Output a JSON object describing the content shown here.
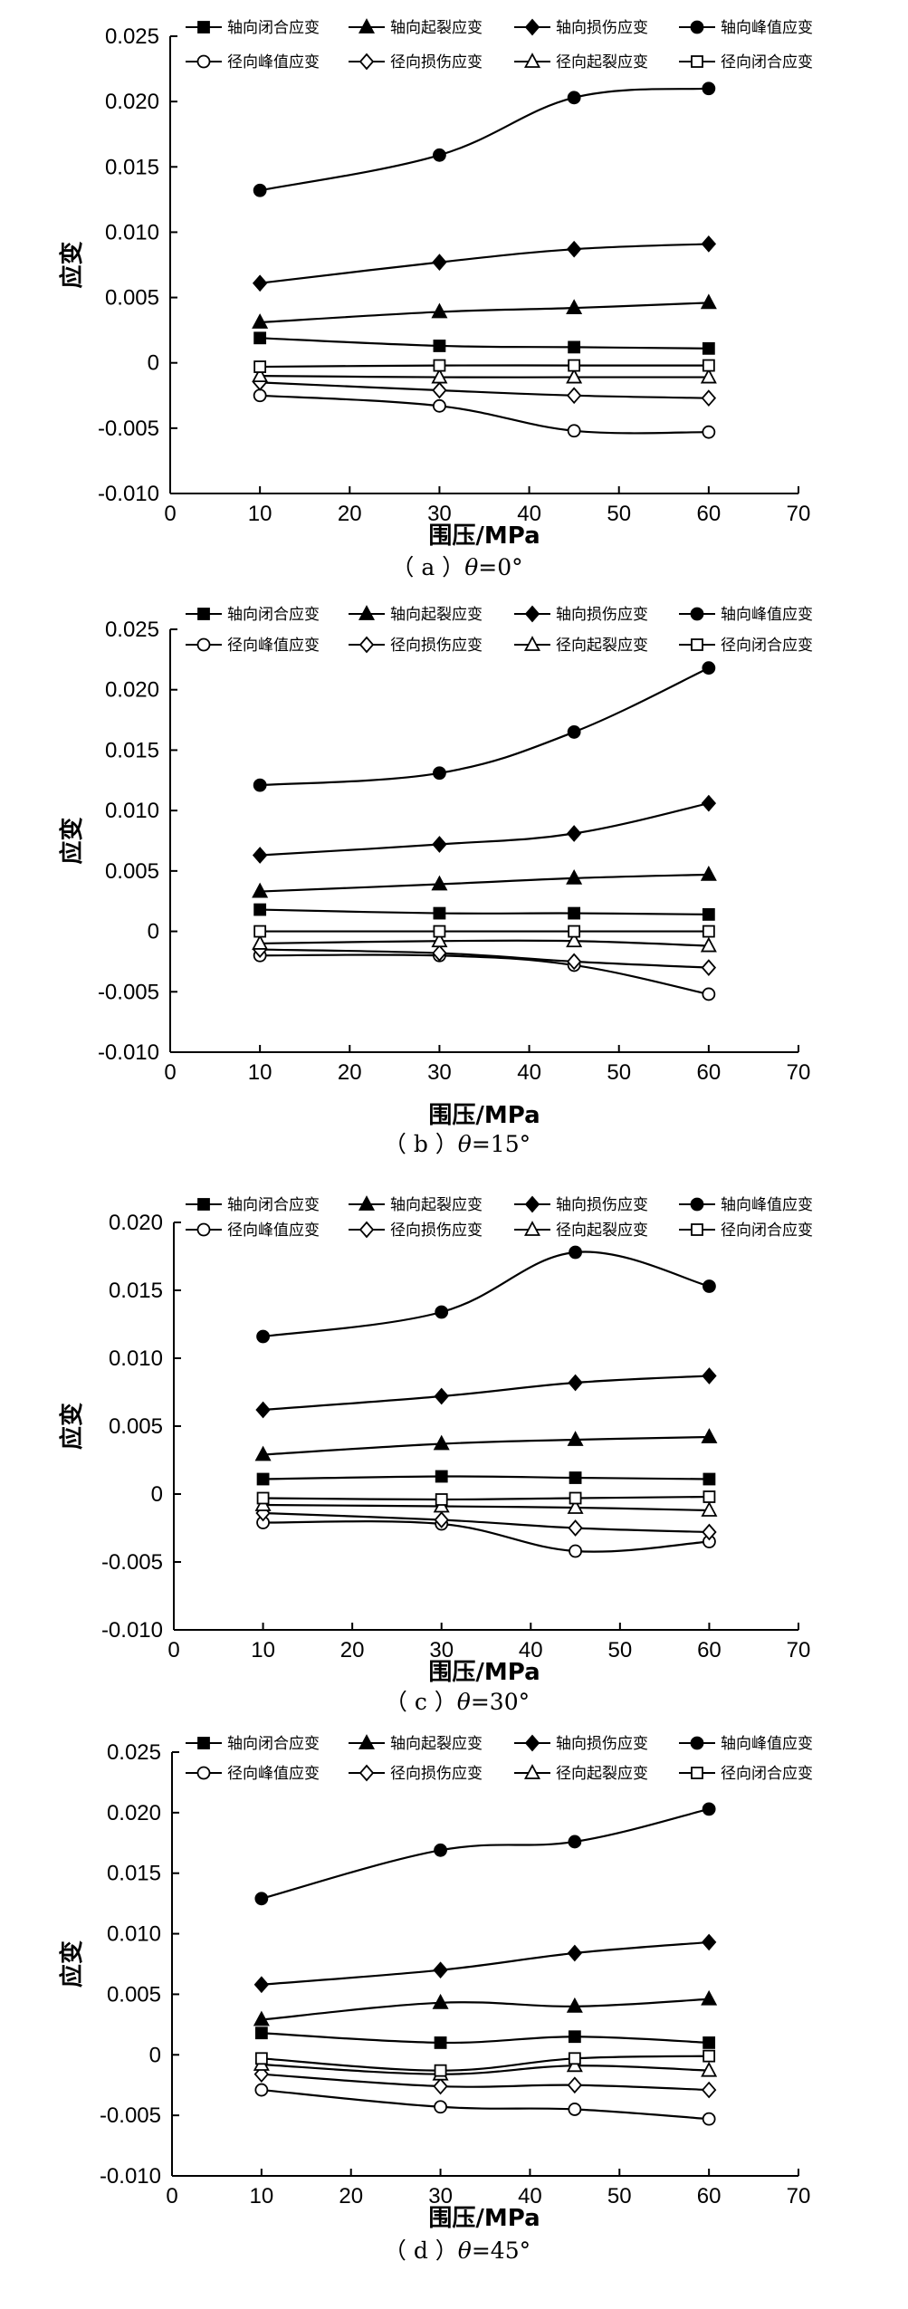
{
  "chart_data": [
    {
      "type": "line",
      "caption": {
        "label": "（ a ）",
        "symbol": "θ",
        "value": "=0°"
      },
      "xlabel": "围压/MPa",
      "ylabel": "应变",
      "xlim": [
        0,
        70
      ],
      "ylim": [
        -0.01,
        0.025
      ],
      "xticks": [
        "0",
        "10",
        "20",
        "30",
        "40",
        "50",
        "60",
        "70"
      ],
      "yticks": [
        "-0.010",
        "-0.005",
        "0",
        "0.005",
        "0.010",
        "0.015",
        "0.020",
        "0.025"
      ],
      "x": [
        10,
        30,
        45,
        60
      ],
      "series": [
        {
          "name": "轴向闭合应变",
          "marker": "square-filled",
          "values": [
            0.0019,
            0.0013,
            0.0012,
            0.0011
          ]
        },
        {
          "name": "轴向起裂应变",
          "marker": "triangle-filled",
          "values": [
            0.0031,
            0.0039,
            0.0042,
            0.0046
          ]
        },
        {
          "name": "轴向损伤应变",
          "marker": "diamond-filled",
          "values": [
            0.0061,
            0.0077,
            0.0087,
            0.0091
          ]
        },
        {
          "name": "轴向峰值应变",
          "marker": "circle-filled",
          "values": [
            0.0132,
            0.0159,
            0.0203,
            0.021
          ]
        },
        {
          "name": "径向峰值应变",
          "marker": "circle-open",
          "values": [
            -0.0025,
            -0.0033,
            -0.0052,
            -0.0053
          ]
        },
        {
          "name": "径向损伤应变",
          "marker": "diamond-open",
          "values": [
            -0.0015,
            -0.0021,
            -0.0025,
            -0.0027
          ]
        },
        {
          "name": "径向起裂应变",
          "marker": "triangle-open",
          "values": [
            -0.001,
            -0.0011,
            -0.0011,
            -0.0011
          ]
        },
        {
          "name": "径向闭合应变",
          "marker": "square-open",
          "values": [
            -0.0003,
            -0.0002,
            -0.0002,
            -0.0002
          ]
        }
      ]
    },
    {
      "type": "line",
      "caption": {
        "label": "（ b ）",
        "symbol": "θ",
        "value": "=15°"
      },
      "xlabel": "围压/MPa",
      "ylabel": "应变",
      "xlim": [
        0,
        70
      ],
      "ylim": [
        -0.01,
        0.025
      ],
      "xticks": [
        "0",
        "10",
        "20",
        "30",
        "40",
        "50",
        "60",
        "70"
      ],
      "yticks": [
        "-0.010",
        "-0.005",
        "0",
        "0.005",
        "0.010",
        "0.015",
        "0.020",
        "0.025"
      ],
      "x": [
        10,
        30,
        45,
        60
      ],
      "series": [
        {
          "name": "轴向闭合应变",
          "marker": "square-filled",
          "values": [
            0.0018,
            0.0015,
            0.0015,
            0.0014
          ]
        },
        {
          "name": "轴向起裂应变",
          "marker": "triangle-filled",
          "values": [
            0.0033,
            0.0039,
            0.0044,
            0.0047
          ]
        },
        {
          "name": "轴向损伤应变",
          "marker": "diamond-filled",
          "values": [
            0.0063,
            0.0072,
            0.0081,
            0.0106
          ]
        },
        {
          "name": "轴向峰值应变",
          "marker": "circle-filled",
          "values": [
            0.0121,
            0.0131,
            0.0165,
            0.0218
          ]
        },
        {
          "name": "径向峰值应变",
          "marker": "circle-open",
          "values": [
            -0.002,
            -0.002,
            -0.0028,
            -0.0052
          ]
        },
        {
          "name": "径向损伤应变",
          "marker": "diamond-open",
          "values": [
            -0.0015,
            -0.0018,
            -0.0025,
            -0.003
          ]
        },
        {
          "name": "径向起裂应变",
          "marker": "triangle-open",
          "values": [
            -0.001,
            -0.0008,
            -0.0008,
            -0.0012
          ]
        },
        {
          "name": "径向闭合应变",
          "marker": "square-open",
          "values": [
            0.0,
            0.0,
            0.0,
            0.0
          ]
        }
      ]
    },
    {
      "type": "line",
      "caption": {
        "label": "（ c ）",
        "symbol": "θ",
        "value": "=30°"
      },
      "xlabel": "围压/MPa",
      "ylabel": "应变",
      "xlim": [
        0,
        70
      ],
      "ylim": [
        -0.01,
        0.02
      ],
      "xticks": [
        "0",
        "10",
        "20",
        "30",
        "40",
        "50",
        "60",
        "70"
      ],
      "yticks": [
        "-0.010",
        "-0.005",
        "0",
        "0.005",
        "0.010",
        "0.015",
        "0.020"
      ],
      "x": [
        10,
        30,
        45,
        60
      ],
      "series": [
        {
          "name": "轴向闭合应变",
          "marker": "square-filled",
          "values": [
            0.0011,
            0.0013,
            0.0012,
            0.0011
          ]
        },
        {
          "name": "轴向起裂应变",
          "marker": "triangle-filled",
          "values": [
            0.0029,
            0.0037,
            0.004,
            0.0042
          ]
        },
        {
          "name": "轴向损伤应变",
          "marker": "diamond-filled",
          "values": [
            0.0062,
            0.0072,
            0.0082,
            0.0087
          ]
        },
        {
          "name": "轴向峰值应变",
          "marker": "circle-filled",
          "values": [
            0.0116,
            0.0134,
            0.0178,
            0.0153
          ]
        },
        {
          "name": "径向峰值应变",
          "marker": "circle-open",
          "values": [
            -0.0021,
            -0.0022,
            -0.0042,
            -0.0035
          ]
        },
        {
          "name": "径向损伤应变",
          "marker": "diamond-open",
          "values": [
            -0.0014,
            -0.0019,
            -0.0025,
            -0.0028
          ]
        },
        {
          "name": "径向起裂应变",
          "marker": "triangle-open",
          "values": [
            -0.0008,
            -0.0009,
            -0.001,
            -0.0012
          ]
        },
        {
          "name": "径向闭合应变",
          "marker": "square-open",
          "values": [
            -0.0003,
            -0.0004,
            -0.0003,
            -0.0002
          ]
        }
      ]
    },
    {
      "type": "line",
      "caption": {
        "label": "（ d ）",
        "symbol": "θ",
        "value": "=45°"
      },
      "xlabel": "围压/MPa",
      "ylabel": "应变",
      "xlim": [
        0,
        70
      ],
      "ylim": [
        -0.01,
        0.025
      ],
      "xticks": [
        "0",
        "10",
        "20",
        "30",
        "40",
        "50",
        "60",
        "70"
      ],
      "yticks": [
        "-0.010",
        "-0.005",
        "0",
        "0.005",
        "0.010",
        "0.015",
        "0.020",
        "0.025"
      ],
      "x": [
        10,
        30,
        45,
        60
      ],
      "series": [
        {
          "name": "轴向闭合应变",
          "marker": "square-filled",
          "values": [
            0.0018,
            0.001,
            0.0015,
            0.001
          ]
        },
        {
          "name": "轴向起裂应变",
          "marker": "triangle-filled",
          "values": [
            0.0029,
            0.0043,
            0.004,
            0.0046
          ]
        },
        {
          "name": "轴向损伤应变",
          "marker": "diamond-filled",
          "values": [
            0.0058,
            0.007,
            0.0084,
            0.0093
          ]
        },
        {
          "name": "轴向峰值应变",
          "marker": "circle-filled",
          "values": [
            0.0129,
            0.0169,
            0.0176,
            0.0203
          ]
        },
        {
          "name": "径向峰值应变",
          "marker": "circle-open",
          "values": [
            -0.0029,
            -0.0043,
            -0.0045,
            -0.0053
          ]
        },
        {
          "name": "径向损伤应变",
          "marker": "diamond-open",
          "values": [
            -0.0016,
            -0.0026,
            -0.0025,
            -0.0029
          ]
        },
        {
          "name": "径向起裂应变",
          "marker": "triangle-open",
          "values": [
            -0.0008,
            -0.0016,
            -0.0009,
            -0.0013
          ]
        },
        {
          "name": "径向闭合应变",
          "marker": "square-open",
          "values": [
            -0.0003,
            -0.0013,
            -0.0003,
            -0.0001
          ]
        }
      ]
    }
  ]
}
